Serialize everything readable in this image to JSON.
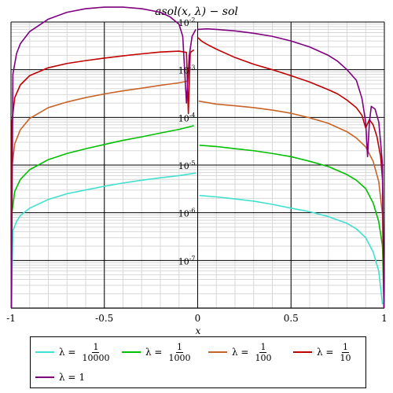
{
  "chart_data": {
    "type": "line",
    "title": "asol(x, λ) − sol",
    "xlabel": "x",
    "ylabel": "",
    "xlim": [
      -1,
      1
    ],
    "ylim": [
      1e-08,
      0.01
    ],
    "yscale": "log",
    "grid": true,
    "x_ticks": [
      {
        "value": -1,
        "label": "-1"
      },
      {
        "value": -0.5,
        "label": "-0.5"
      },
      {
        "value": 0,
        "label": "0"
      },
      {
        "value": 0.5,
        "label": "0.5"
      },
      {
        "value": 1,
        "label": "1"
      }
    ],
    "y_ticks": [
      {
        "value": 1e-07,
        "base": "10",
        "exp": "-7"
      },
      {
        "value": 1e-06,
        "base": "10",
        "exp": "-6"
      },
      {
        "value": 1e-05,
        "base": "10",
        "exp": "-5"
      },
      {
        "value": 0.0001,
        "base": "10",
        "exp": "-4"
      },
      {
        "value": 0.001,
        "base": "10",
        "exp": "-3"
      },
      {
        "value": 0.01,
        "base": "10",
        "exp": "-2"
      }
    ],
    "legend_position": "bottom",
    "series": [
      {
        "name_prefix": "λ =",
        "numerator": "1",
        "denominator": "10000",
        "color": "#40e0d0",
        "left": [
          [
            -0.998,
            1e-08
          ],
          [
            -0.99,
            4.2e-07
          ],
          [
            -0.97,
            6.6e-07
          ],
          [
            -0.95,
            8.7e-07
          ],
          [
            -0.9,
            1.25e-06
          ],
          [
            -0.8,
            1.9e-06
          ],
          [
            -0.7,
            2.5e-06
          ],
          [
            -0.6,
            3e-06
          ],
          [
            -0.5,
            3.6e-06
          ],
          [
            -0.4,
            4.2e-06
          ],
          [
            -0.3,
            4.8e-06
          ],
          [
            -0.2,
            5.4e-06
          ],
          [
            -0.1,
            6e-06
          ],
          [
            -0.01,
            6.8e-06
          ]
        ],
        "right": [
          [
            0.01,
            2.3e-06
          ],
          [
            0.1,
            2.15e-06
          ],
          [
            0.2,
            1.95e-06
          ],
          [
            0.3,
            1.75e-06
          ],
          [
            0.4,
            1.5e-06
          ],
          [
            0.5,
            1.25e-06
          ],
          [
            0.6,
            1.05e-06
          ],
          [
            0.7,
            8.3e-07
          ],
          [
            0.8,
            6e-07
          ],
          [
            0.85,
            4.6e-07
          ],
          [
            0.9,
            3e-07
          ],
          [
            0.94,
            1.5e-07
          ],
          [
            0.97,
            6e-08
          ],
          [
            0.99,
            1.2e-08
          ]
        ]
      },
      {
        "name_prefix": "λ =",
        "numerator": "1",
        "denominator": "1000",
        "color": "#00bf00",
        "left": [
          [
            -0.998,
            1e-08
          ],
          [
            -0.995,
            1e-06
          ],
          [
            -0.98,
            2.8e-06
          ],
          [
            -0.95,
            5e-06
          ],
          [
            -0.9,
            8e-06
          ],
          [
            -0.8,
            1.3e-05
          ],
          [
            -0.7,
            1.75e-05
          ],
          [
            -0.6,
            2.2e-05
          ],
          [
            -0.5,
            2.7e-05
          ],
          [
            -0.4,
            3.3e-05
          ],
          [
            -0.3,
            3.9e-05
          ],
          [
            -0.2,
            4.7e-05
          ],
          [
            -0.1,
            5.6e-05
          ],
          [
            -0.02,
            6.7e-05
          ]
        ],
        "right": [
          [
            0.01,
            2.6e-05
          ],
          [
            0.1,
            2.45e-05
          ],
          [
            0.2,
            2.2e-05
          ],
          [
            0.3,
            2e-05
          ],
          [
            0.4,
            1.75e-05
          ],
          [
            0.5,
            1.5e-05
          ],
          [
            0.6,
            1.2e-05
          ],
          [
            0.7,
            9.3e-06
          ],
          [
            0.8,
            6.3e-06
          ],
          [
            0.85,
            4.8e-06
          ],
          [
            0.9,
            3.2e-06
          ],
          [
            0.94,
            1.6e-06
          ],
          [
            0.97,
            6.5e-07
          ],
          [
            0.99,
            2e-07
          ],
          [
            0.998,
            1e-08
          ]
        ]
      },
      {
        "name_prefix": "λ =",
        "numerator": "1",
        "denominator": "100",
        "color": "#c86428",
        "left": [
          [
            -0.998,
            1e-08
          ],
          [
            -0.995,
            9e-06
          ],
          [
            -0.98,
            2.8e-05
          ],
          [
            -0.95,
            5.5e-05
          ],
          [
            -0.9,
            9.5e-05
          ],
          [
            -0.8,
            0.00016
          ],
          [
            -0.7,
            0.00021
          ],
          [
            -0.6,
            0.00026
          ],
          [
            -0.5,
            0.00031
          ],
          [
            -0.4,
            0.00036
          ],
          [
            -0.3,
            0.00041
          ],
          [
            -0.2,
            0.00047
          ],
          [
            -0.1,
            0.00053
          ],
          [
            -0.05,
            0.00058
          ]
        ],
        "right": [
          [
            0.005,
            0.00022
          ],
          [
            0.05,
            0.000205
          ],
          [
            0.1,
            0.00019
          ],
          [
            0.2,
            0.000175
          ],
          [
            0.3,
            0.00016
          ],
          [
            0.4,
            0.000142
          ],
          [
            0.5,
            0.000122
          ],
          [
            0.6,
            9.8e-05
          ],
          [
            0.7,
            7.5e-05
          ],
          [
            0.8,
            5e-05
          ],
          [
            0.85,
            3.7e-05
          ],
          [
            0.9,
            2.4e-05
          ],
          [
            0.94,
            1.2e-05
          ],
          [
            0.97,
            4.5e-06
          ],
          [
            0.99,
            9e-07
          ],
          [
            0.998,
            1e-08
          ]
        ]
      },
      {
        "name_prefix": "λ =",
        "numerator": "1",
        "denominator": "10",
        "color": "#c00000",
        "left": [
          [
            -0.998,
            1e-08
          ],
          [
            -0.995,
            8e-05
          ],
          [
            -0.98,
            0.00026
          ],
          [
            -0.95,
            0.00048
          ],
          [
            -0.9,
            0.00075
          ],
          [
            -0.8,
            0.0011
          ],
          [
            -0.7,
            0.00135
          ],
          [
            -0.6,
            0.00155
          ],
          [
            -0.5,
            0.00175
          ],
          [
            -0.4,
            0.00195
          ],
          [
            -0.3,
            0.00215
          ],
          [
            -0.2,
            0.00235
          ],
          [
            -0.1,
            0.00245
          ],
          [
            -0.06,
            0.0023
          ],
          [
            -0.05,
            0.00012
          ],
          [
            -0.04,
            0.0023
          ],
          [
            -0.02,
            0.0026
          ]
        ],
        "right": [
          [
            0.002,
            0.0047
          ],
          [
            0.02,
            0.004
          ],
          [
            0.05,
            0.0034
          ],
          [
            0.1,
            0.0027
          ],
          [
            0.2,
            0.0018
          ],
          [
            0.3,
            0.0013
          ],
          [
            0.4,
            0.001
          ],
          [
            0.5,
            0.00075
          ],
          [
            0.6,
            0.00055
          ],
          [
            0.7,
            0.00038
          ],
          [
            0.75,
            0.00031
          ],
          [
            0.8,
            0.00023
          ],
          [
            0.85,
            0.00016
          ],
          [
            0.88,
            0.00011
          ],
          [
            0.9,
            6e-05
          ],
          [
            0.92,
            9e-05
          ],
          [
            0.94,
            7e-05
          ],
          [
            0.96,
            4e-05
          ],
          [
            0.98,
            1.5e-05
          ],
          [
            0.99,
            5e-06
          ],
          [
            0.998,
            1e-08
          ]
        ]
      },
      {
        "name_prefix": "λ =",
        "numerator": "",
        "denominator": "",
        "value_text": "1",
        "color": "#7f007f",
        "left": [
          [
            -0.998,
            1e-08
          ],
          [
            -0.99,
            0.0008
          ],
          [
            -0.97,
            0.0022
          ],
          [
            -0.95,
            0.0035
          ],
          [
            -0.9,
            0.0063
          ],
          [
            -0.8,
            0.0115
          ],
          [
            -0.7,
            0.016
          ],
          [
            -0.6,
            0.019
          ],
          [
            -0.5,
            0.0205
          ],
          [
            -0.4,
            0.0205
          ],
          [
            -0.3,
            0.019
          ],
          [
            -0.2,
            0.016
          ],
          [
            -0.15,
            0.013
          ],
          [
            -0.1,
            0.009
          ],
          [
            -0.08,
            0.005
          ],
          [
            -0.06,
            0.0002
          ],
          [
            -0.045,
            0.002
          ],
          [
            -0.03,
            0.005
          ],
          [
            -0.01,
            0.007
          ]
        ],
        "right": [
          [
            0.002,
            0.007
          ],
          [
            0.05,
            0.0072
          ],
          [
            0.1,
            0.007
          ],
          [
            0.2,
            0.0065
          ],
          [
            0.3,
            0.0058
          ],
          [
            0.4,
            0.005
          ],
          [
            0.5,
            0.004
          ],
          [
            0.6,
            0.003
          ],
          [
            0.7,
            0.002
          ],
          [
            0.75,
            0.0015
          ],
          [
            0.8,
            0.001
          ],
          [
            0.85,
            0.0006
          ],
          [
            0.88,
            0.00025
          ],
          [
            0.9,
            8e-05
          ],
          [
            0.91,
            1.5e-05
          ],
          [
            0.92,
            8e-05
          ],
          [
            0.93,
            0.00017
          ],
          [
            0.95,
            0.00015
          ],
          [
            0.97,
            8e-05
          ],
          [
            0.98,
            3e-05
          ],
          [
            0.99,
            1e-05
          ],
          [
            0.998,
            1e-08
          ]
        ]
      }
    ]
  }
}
